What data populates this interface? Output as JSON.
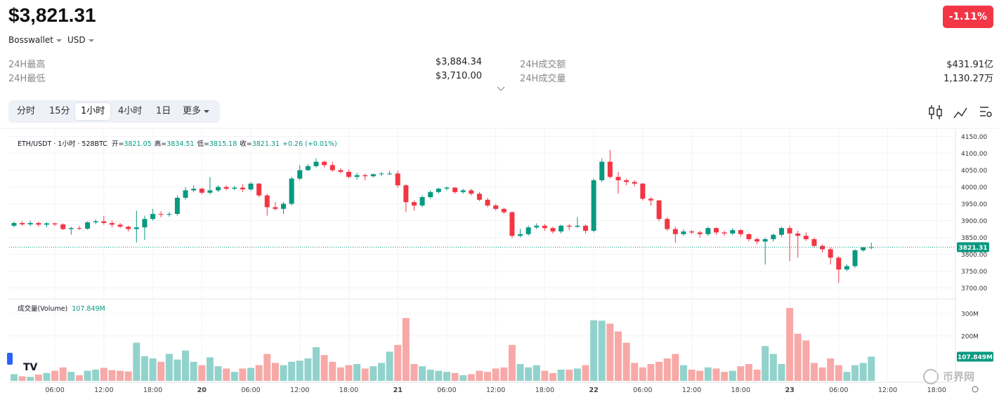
{
  "header": {
    "price": "$3,821.31",
    "wallet": "Bosswallet",
    "currency": "USD",
    "change": "-1.11%"
  },
  "stats": [
    {
      "label": "24H最高",
      "value": "$3,884.34"
    },
    {
      "label": "24H最低",
      "value": "$3,710.00"
    },
    {
      "label": "24H成交额",
      "value": "$431.91亿"
    },
    {
      "label": "24H成交量",
      "value": "1,130.27万"
    }
  ],
  "tabs": [
    "分时",
    "15分",
    "1小时",
    "4小时",
    "1日",
    "更多"
  ],
  "watermark": "币界网",
  "chart_data": {
    "type": "candlestick",
    "legend": "ETH/USDT · 1小时 · 528BTC",
    "ohlc_legend": [
      {
        "label": "开=",
        "value": 3821.05
      },
      {
        "label": "高=",
        "value": 3834.51
      },
      {
        "label": "低=",
        "value": 3815.18
      },
      {
        "label": "收=",
        "value": 3821.31
      }
    ],
    "change_label": "+0.26 (+0.01%)",
    "up_color": "#089981",
    "down_color": "#f23645",
    "up_volume_color": "#92d2cc",
    "down_volume_color": "#f7a9a7",
    "open": [
      3885,
      3893,
      3889,
      3893,
      3888,
      3892,
      3889,
      3875,
      3878,
      3876,
      3895,
      3898,
      3893,
      3888,
      3882,
      3875,
      3880,
      3905,
      3920,
      3918,
      3920,
      3968,
      3990,
      3995,
      3983,
      3990,
      4000,
      3995,
      3998,
      3993,
      4010,
      3975,
      3940,
      3935,
      3950,
      4025,
      4050,
      4062,
      4075,
      4065,
      4050,
      4045,
      4030,
      4035,
      4032,
      4038,
      4040,
      4040,
      4005,
      3955,
      3945,
      3970,
      3985,
      3995,
      3998,
      3985,
      3990,
      3980,
      3962,
      3945,
      3935,
      3925,
      3855,
      3860,
      3880,
      3885,
      3878,
      3868,
      3885,
      3882,
      3885,
      3870,
      4020,
      4075,
      4030,
      4020,
      4015,
      4010,
      3965,
      3960,
      3905,
      3875,
      3860,
      3868,
      3865,
      3860,
      3878,
      3865,
      3862,
      3872,
      3860,
      3845,
      3838,
      3845,
      3858,
      3878,
      3862,
      3855,
      3845,
      3825,
      3815,
      3790,
      3755,
      3765,
      3812,
      3821.05
    ],
    "high": [
      3897,
      3898,
      3900,
      3897,
      3896,
      3894,
      3892,
      3882,
      3884,
      3898,
      3904,
      3914,
      3900,
      3893,
      3885,
      3930,
      3915,
      3935,
      3928,
      3925,
      3975,
      4000,
      4005,
      3998,
      4030,
      4005,
      4005,
      4003,
      4008,
      4015,
      4012,
      3980,
      3955,
      3955,
      4030,
      4065,
      4068,
      4085,
      4078,
      4075,
      4056,
      4052,
      4042,
      4040,
      4040,
      4045,
      4048,
      4048,
      4008,
      3960,
      3975,
      3990,
      3998,
      4002,
      4000,
      3995,
      3995,
      3985,
      3968,
      3950,
      3938,
      3928,
      3875,
      3885,
      3892,
      3890,
      3882,
      3888,
      3890,
      3910,
      3888,
      4025,
      4085,
      4110,
      4045,
      4025,
      4020,
      4012,
      3970,
      3962,
      3910,
      3882,
      3875,
      3872,
      3870,
      3882,
      3880,
      3870,
      3878,
      3875,
      3862,
      3850,
      3850,
      3862,
      3882,
      3885,
      3870,
      3865,
      3850,
      3830,
      3820,
      3795,
      3770,
      3815,
      3822,
      3834.51
    ],
    "low": [
      3880,
      3885,
      3884,
      3882,
      3880,
      3884,
      3872,
      3858,
      3872,
      3873,
      3890,
      3888,
      3880,
      3878,
      3868,
      3835,
      3843,
      3900,
      3910,
      3912,
      3915,
      3962,
      3985,
      3978,
      3978,
      3985,
      3990,
      3990,
      3985,
      3988,
      3970,
      3915,
      3930,
      3920,
      3945,
      4020,
      4048,
      4058,
      4058,
      4045,
      4040,
      4025,
      4022,
      4020,
      4028,
      4032,
      4035,
      3998,
      3925,
      3930,
      3940,
      3965,
      3980,
      3990,
      3980,
      3980,
      3975,
      3958,
      3940,
      3930,
      3920,
      3848,
      3850,
      3855,
      3875,
      3870,
      3862,
      3862,
      3872,
      3878,
      3862,
      3865,
      4015,
      4025,
      3980,
      4005,
      4002,
      3960,
      3945,
      3898,
      3870,
      3835,
      3855,
      3860,
      3850,
      3855,
      3858,
      3855,
      3858,
      3852,
      3838,
      3830,
      3770,
      3838,
      3852,
      3780,
      3790,
      3840,
      3820,
      3805,
      3770,
      3715,
      3750,
      3760,
      3808,
      3815.18
    ],
    "close": [
      3893,
      3889,
      3893,
      3888,
      3892,
      3889,
      3875,
      3878,
      3876,
      3895,
      3898,
      3893,
      3888,
      3882,
      3875,
      3880,
      3905,
      3920,
      3918,
      3920,
      3968,
      3990,
      3995,
      3983,
      3990,
      4000,
      3995,
      3998,
      3993,
      4010,
      3975,
      3940,
      3935,
      3950,
      4025,
      4050,
      4062,
      4075,
      4065,
      4050,
      4045,
      4030,
      4035,
      4032,
      4038,
      4040,
      4040,
      4005,
      3955,
      3945,
      3970,
      3985,
      3995,
      3998,
      3985,
      3990,
      3980,
      3962,
      3945,
      3935,
      3925,
      3855,
      3860,
      3880,
      3885,
      3878,
      3868,
      3885,
      3882,
      3885,
      3870,
      4020,
      4075,
      4030,
      4020,
      4015,
      4010,
      3965,
      3960,
      3905,
      3875,
      3860,
      3868,
      3865,
      3860,
      3878,
      3865,
      3862,
      3872,
      3860,
      3845,
      3838,
      3845,
      3858,
      3878,
      3862,
      3855,
      3845,
      3825,
      3815,
      3790,
      3755,
      3765,
      3812,
      3821,
      3821.31
    ],
    "volume": {
      "title": "成交量(Volume)",
      "last_label": "107.849M",
      "values": [
        30,
        20,
        18,
        28,
        35,
        45,
        60,
        40,
        25,
        45,
        50,
        58,
        48,
        45,
        42,
        170,
        110,
        100,
        85,
        120,
        95,
        135,
        85,
        70,
        105,
        65,
        55,
        40,
        55,
        58,
        70,
        120,
        80,
        70,
        85,
        90,
        100,
        150,
        115,
        85,
        60,
        70,
        75,
        55,
        65,
        80,
        130,
        160,
        280,
        75,
        65,
        50,
        45,
        40,
        35,
        25,
        30,
        45,
        40,
        55,
        60,
        160,
        75,
        60,
        70,
        45,
        35,
        50,
        50,
        55,
        70,
        270,
        268,
        255,
        220,
        170,
        80,
        60,
        75,
        85,
        100,
        120,
        70,
        50,
        45,
        60,
        55,
        40,
        45,
        65,
        75,
        50,
        155,
        120,
        75,
        325,
        210,
        180,
        80,
        60,
        100,
        70,
        40,
        70,
        80,
        107.849
      ],
      "ylim": [
        0,
        353
      ],
      "yticks": [
        {
          "value": 200,
          "label": "200M"
        },
        {
          "value": 300,
          "label": "300M"
        }
      ]
    },
    "xlim": [
      -0.6,
      115.3
    ],
    "xticks": [
      {
        "value": 5,
        "label": "06:00"
      },
      {
        "value": 11,
        "label": "12:00"
      },
      {
        "value": 17,
        "label": "18:00"
      },
      {
        "value": 23,
        "label": "20"
      },
      {
        "value": 29,
        "label": "06:00"
      },
      {
        "value": 35,
        "label": "12:00"
      },
      {
        "value": 41,
        "label": "18:00"
      },
      {
        "value": 47,
        "label": "21"
      },
      {
        "value": 53,
        "label": "06:00"
      },
      {
        "value": 59,
        "label": "12:00"
      },
      {
        "value": 65,
        "label": "18:00"
      },
      {
        "value": 71,
        "label": "22"
      },
      {
        "value": 77,
        "label": "06:00"
      },
      {
        "value": 83,
        "label": "12:00"
      },
      {
        "value": 89,
        "label": "18:00"
      },
      {
        "value": 95,
        "label": "23"
      },
      {
        "value": 101,
        "label": "06:00"
      },
      {
        "value": 107,
        "label": "12:00"
      },
      {
        "value": 113,
        "label": "18:00"
      }
    ],
    "ylim": [
      3670,
      4170
    ],
    "yticks": [
      {
        "value": 3700,
        "label": "3700.00"
      },
      {
        "value": 3750,
        "label": "3750.00"
      },
      {
        "value": 3800,
        "label": "3800.00"
      },
      {
        "value": 3850,
        "label": "3850.00"
      },
      {
        "value": 3900,
        "label": "3900.00"
      },
      {
        "value": 3950,
        "label": "3950.00"
      },
      {
        "value": 4000,
        "label": "4000.00"
      },
      {
        "value": 4050,
        "label": "4050.00"
      },
      {
        "value": 4100,
        "label": "4100.00"
      },
      {
        "value": 4150,
        "label": "4150.00"
      }
    ],
    "grid": true
  }
}
